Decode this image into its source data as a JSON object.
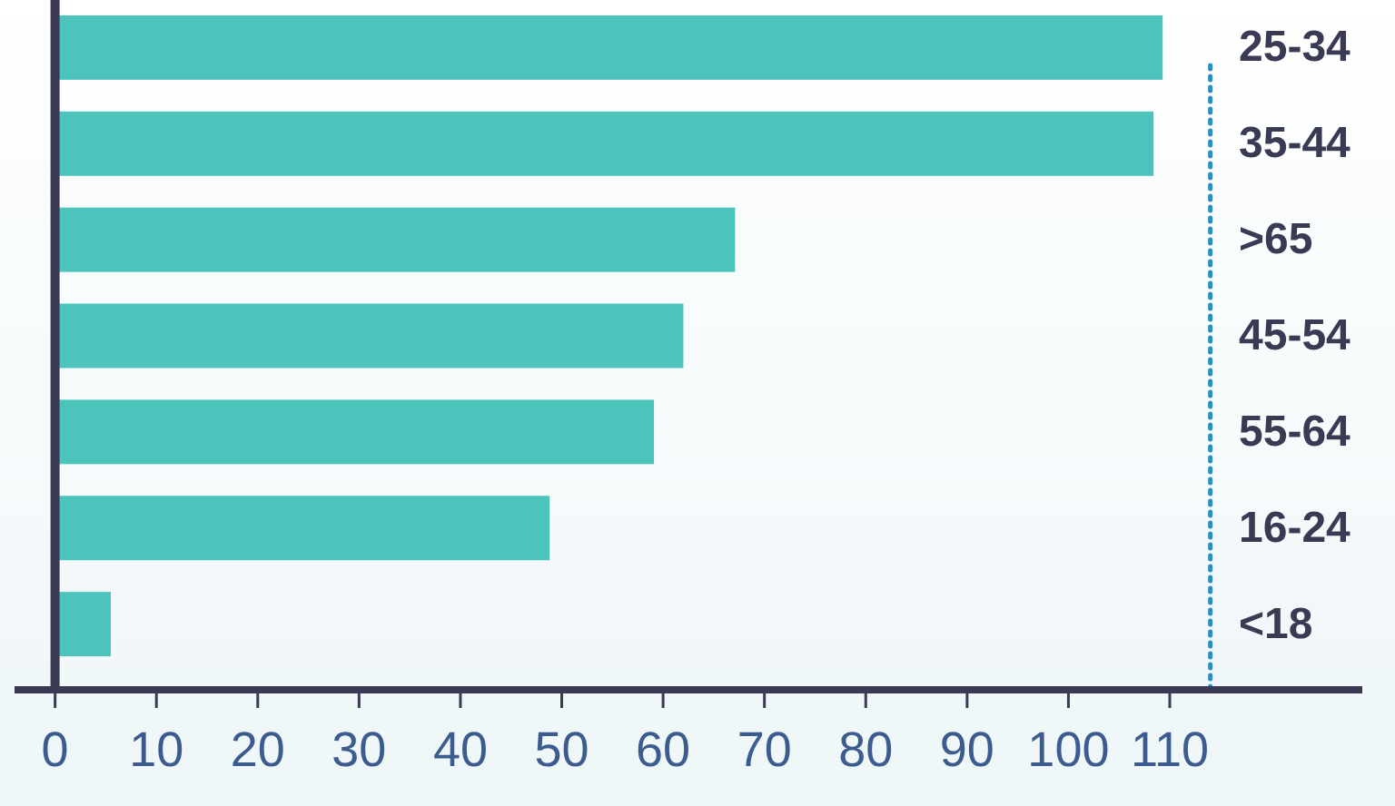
{
  "chart_data": {
    "type": "bar",
    "orientation": "horizontal",
    "categories": [
      "25-34",
      "35-44",
      ">65",
      "45-54",
      "55-64",
      "16-24",
      "<18"
    ],
    "values": [
      109.3,
      108.4,
      67.1,
      62,
      59.1,
      48.8,
      5.5
    ],
    "color": "#4cc3bb",
    "xlim": [
      -4,
      129
    ],
    "xticks": [
      0,
      10,
      20,
      30,
      40,
      50,
      60,
      70,
      80,
      90,
      100,
      110
    ],
    "ref_lines": [
      {
        "axis": "x",
        "value": 114,
        "color": "#2a8fc4",
        "line_style": "dotted"
      }
    ]
  }
}
